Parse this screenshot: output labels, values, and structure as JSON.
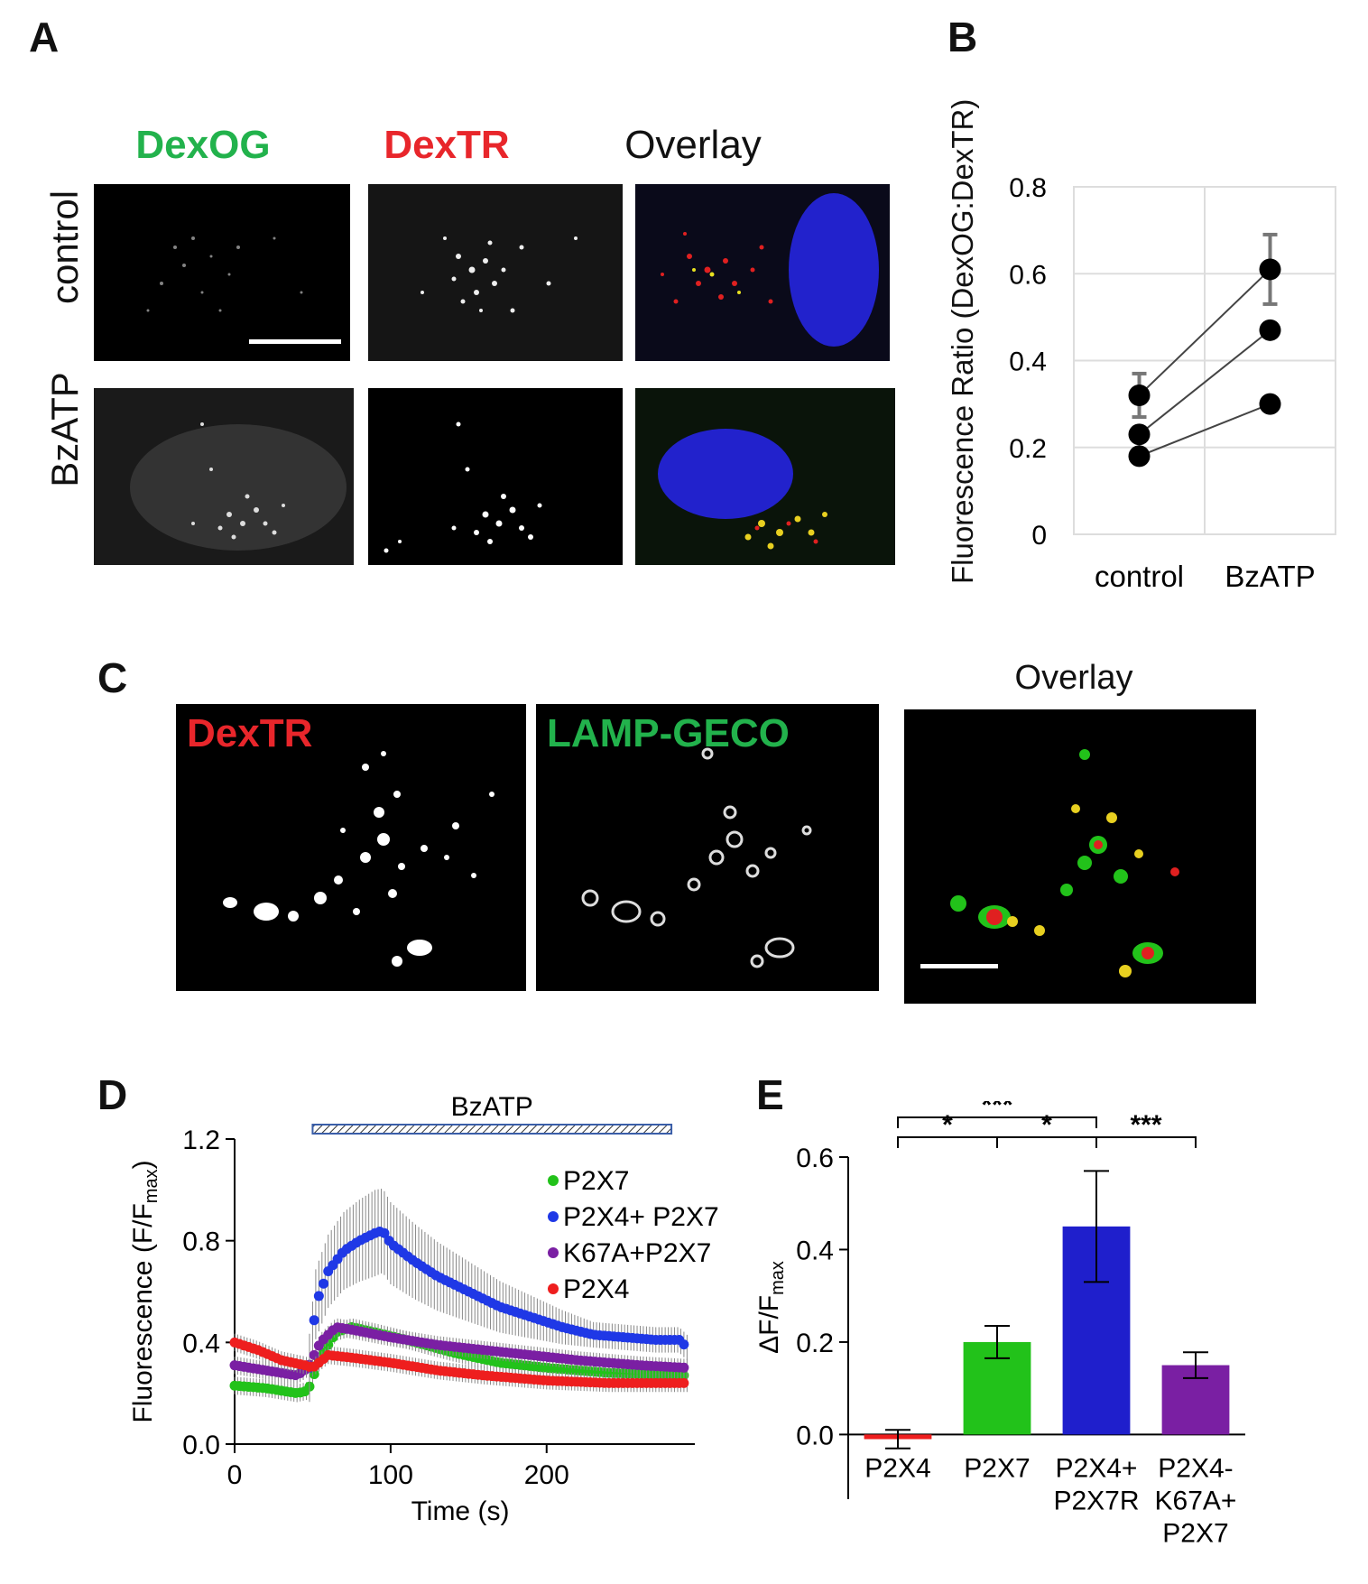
{
  "panels": {
    "A": {
      "letter": "A",
      "col_titles": [
        "DexOG",
        "DexTR",
        "Overlay"
      ],
      "col_colors": [
        "#22b24c",
        "#e8262b",
        "#111111"
      ],
      "row_labels": [
        "control",
        "BzATP"
      ]
    },
    "B": {
      "letter": "B",
      "ylabel": "Fluorescence Ratio (DexOG:DexTR)"
    },
    "C": {
      "letter": "C",
      "labels": [
        "DexTR",
        "LAMP-GECO",
        "Overlay"
      ],
      "label_colors": [
        "#e8262b",
        "#22b24c",
        "#111111"
      ]
    },
    "D": {
      "letter": "D",
      "bar_label": "BzATP"
    },
    "E": {
      "letter": "E"
    }
  },
  "chart_data": [
    {
      "id": "B",
      "type": "line",
      "title": "",
      "xlabel": "",
      "ylabel": "Fluorescence Ratio (DexOG:DexTR)",
      "categories": [
        "control",
        "BzATP"
      ],
      "ylim": [
        0,
        0.8
      ],
      "yticks": [
        "0",
        "0.2",
        "0.4",
        "0.6",
        "0.8"
      ],
      "grid": true,
      "series": [
        {
          "values": [
            0.32,
            0.61
          ]
        },
        {
          "values": [
            0.23,
            0.47
          ]
        },
        {
          "values": [
            0.18,
            0.3
          ]
        }
      ],
      "error_bars": [
        {
          "category": "control",
          "mean": 0.32,
          "low": 0.27,
          "high": 0.37
        },
        {
          "category": "BzATP",
          "mean": 0.61,
          "low": 0.53,
          "high": 0.69
        }
      ]
    },
    {
      "id": "D",
      "type": "line",
      "title": "",
      "xlabel": "Time (s)",
      "ylabel": "Fluorescence (F/F",
      "ylabel_sub": "max",
      "xlim": [
        0,
        295
      ],
      "ylim": [
        0,
        1.2
      ],
      "xticks": [
        "0",
        "100",
        "200"
      ],
      "yticks": [
        "0.0",
        "0.4",
        "0.8",
        "1.2"
      ],
      "stim_label": "BzATP",
      "stim_range": [
        50,
        280
      ],
      "series": [
        {
          "name": "P2X7",
          "color": "#22c21a",
          "points": [
            [
              0,
              0.23
            ],
            [
              20,
              0.22
            ],
            [
              40,
              0.2
            ],
            [
              47,
              0.21
            ],
            [
              55,
              0.34
            ],
            [
              65,
              0.44
            ],
            [
              75,
              0.46
            ],
            [
              90,
              0.44
            ],
            [
              110,
              0.41
            ],
            [
              140,
              0.36
            ],
            [
              170,
              0.32
            ],
            [
              200,
              0.3
            ],
            [
              240,
              0.28
            ],
            [
              290,
              0.27
            ]
          ]
        },
        {
          "name": "P2X4+ P2X7",
          "color": "#1f38e6",
          "points": [
            [
              48,
              0.3
            ],
            [
              52,
              0.55
            ],
            [
              60,
              0.68
            ],
            [
              70,
              0.76
            ],
            [
              80,
              0.8
            ],
            [
              90,
              0.83
            ],
            [
              95,
              0.84
            ],
            [
              100,
              0.79
            ],
            [
              115,
              0.72
            ],
            [
              130,
              0.66
            ],
            [
              150,
              0.6
            ],
            [
              170,
              0.54
            ],
            [
              190,
              0.5
            ],
            [
              210,
              0.46
            ],
            [
              230,
              0.43
            ],
            [
              250,
              0.42
            ],
            [
              270,
              0.41
            ],
            [
              285,
              0.41
            ],
            [
              290,
              0.38
            ]
          ]
        },
        {
          "name": "K67A+P2X7",
          "color": "#7a1fa3",
          "points": [
            [
              0,
              0.31
            ],
            [
              20,
              0.29
            ],
            [
              40,
              0.27
            ],
            [
              47,
              0.3
            ],
            [
              55,
              0.4
            ],
            [
              65,
              0.46
            ],
            [
              75,
              0.45
            ],
            [
              100,
              0.42
            ],
            [
              130,
              0.39
            ],
            [
              160,
              0.37
            ],
            [
              190,
              0.35
            ],
            [
              220,
              0.33
            ],
            [
              260,
              0.31
            ],
            [
              290,
              0.3
            ]
          ]
        },
        {
          "name": "P2X4",
          "color": "#ee1e1e",
          "points": [
            [
              0,
              0.4
            ],
            [
              15,
              0.37
            ],
            [
              30,
              0.33
            ],
            [
              45,
              0.31
            ],
            [
              50,
              0.3
            ],
            [
              60,
              0.35
            ],
            [
              75,
              0.34
            ],
            [
              100,
              0.32
            ],
            [
              130,
              0.29
            ],
            [
              160,
              0.27
            ],
            [
              200,
              0.25
            ],
            [
              240,
              0.24
            ],
            [
              290,
              0.24
            ]
          ]
        }
      ]
    },
    {
      "id": "E",
      "type": "bar",
      "title": "",
      "xlabel": "",
      "ylabel": "ΔF/F",
      "ylabel_sub": "max",
      "ylim": [
        -0.05,
        0.6
      ],
      "yticks": [
        "0.0",
        "0.2",
        "0.4",
        "0.6"
      ],
      "categories": [
        [
          "P2X4"
        ],
        [
          "P2X7"
        ],
        [
          "P2X4+",
          "P2X7R"
        ],
        [
          "P2X4-",
          "K67A+",
          "P2X7"
        ]
      ],
      "values": [
        -0.01,
        0.2,
        0.45,
        0.15
      ],
      "errors": [
        0.02,
        0.035,
        0.12,
        0.028
      ],
      "colors": [
        "#ee1e1e",
        "#22c21a",
        "#1f1fcc",
        "#7a1fa3"
      ],
      "significance": [
        {
          "from": 0,
          "to": 1,
          "label": "*"
        },
        {
          "from": 1,
          "to": 2,
          "label": "*"
        },
        {
          "from": 0,
          "to": 2,
          "label": "***"
        },
        {
          "from": 2,
          "to": 3,
          "label": "***"
        }
      ]
    }
  ]
}
